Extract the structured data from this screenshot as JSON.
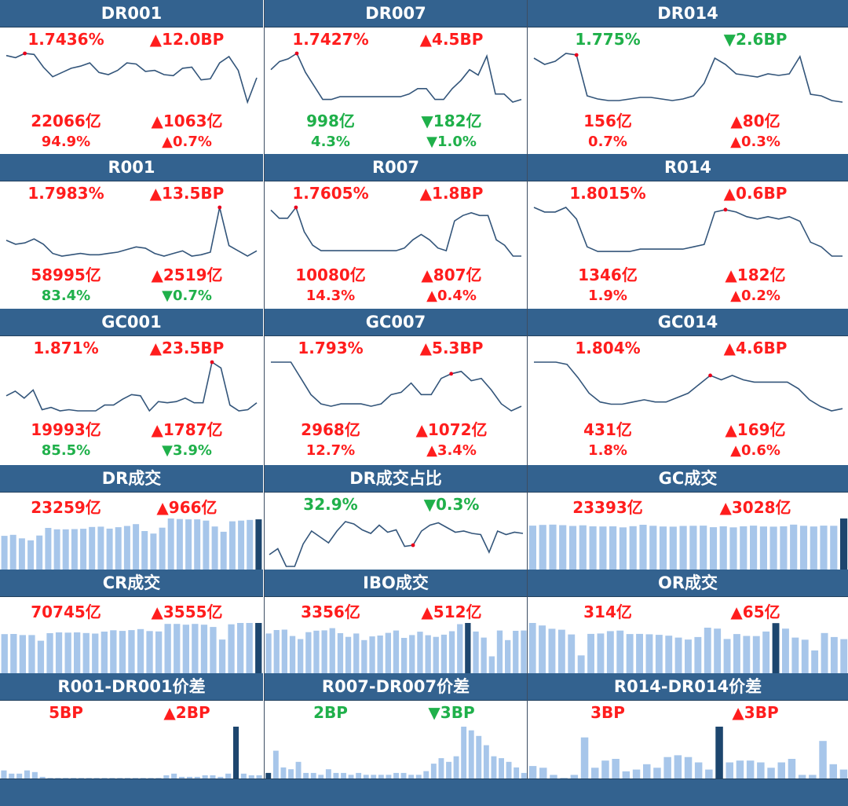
{
  "colors": {
    "up": "#ff1d1d",
    "down": "#1fb04a",
    "header_bg": "#33628f",
    "line": "#33557a",
    "bar_light": "#a7c6ea",
    "bar_dark": "#1d466e",
    "point": "#e8001c"
  },
  "rows": [
    {
      "kind": "rate",
      "panels": [
        {
          "title": "DR001",
          "rate": "1.7436%",
          "rate_dir": "up",
          "rate_chg": "▲12.0BP",
          "rate_chg_dir": "up",
          "vol": "22066亿",
          "vol_dir": "up",
          "vol_chg": "▲1063亿",
          "vol_chg_dir": "up",
          "share": "94.9%",
          "share_dir": "up",
          "share_chg": "▲0.7%",
          "share_chg_dir": "up",
          "chart_data": {
            "type": "line",
            "values": [
              1.58,
              1.56,
              1.6,
              1.59,
              1.47,
              1.38,
              1.42,
              1.46,
              1.48,
              1.51,
              1.42,
              1.4,
              1.44,
              1.51,
              1.5,
              1.43,
              1.44,
              1.4,
              1.39,
              1.46,
              1.47,
              1.35,
              1.36,
              1.51,
              1.57,
              1.44,
              1.14,
              1.37
            ],
            "highlight": 2
          }
        },
        {
          "title": "DR007",
          "rate": "1.7427%",
          "rate_dir": "up",
          "rate_chg": "▲4.5BP",
          "rate_chg_dir": "up",
          "vol": "998亿",
          "vol_dir": "down",
          "vol_chg": "▼182亿",
          "vol_chg_dir": "down",
          "share": "4.3%",
          "share_dir": "down",
          "share_chg": "▼1.0%",
          "share_chg_dir": "down",
          "chart_data": {
            "type": "line",
            "values": [
              1.8,
              1.83,
              1.84,
              1.86,
              1.79,
              1.74,
              1.69,
              1.69,
              1.7,
              1.7,
              1.7,
              1.7,
              1.7,
              1.7,
              1.7,
              1.7,
              1.71,
              1.73,
              1.73,
              1.69,
              1.69,
              1.73,
              1.76,
              1.8,
              1.78,
              1.85,
              1.71,
              1.71,
              1.68,
              1.69
            ],
            "highlight": 3
          }
        },
        {
          "title": "DR014",
          "rate": "1.775%",
          "rate_dir": "down",
          "rate_chg": "▼2.6BP",
          "rate_chg_dir": "down",
          "vol": "156亿",
          "vol_dir": "up",
          "vol_chg": "▲80亿",
          "vol_chg_dir": "up",
          "share": "0.7%",
          "share_dir": "up",
          "share_chg": "▲0.3%",
          "share_chg_dir": "up",
          "chart_data": {
            "type": "line",
            "values": [
              1.86,
              1.82,
              1.84,
              1.89,
              1.88,
              1.62,
              1.6,
              1.59,
              1.59,
              1.6,
              1.61,
              1.61,
              1.6,
              1.59,
              1.6,
              1.62,
              1.7,
              1.86,
              1.82,
              1.76,
              1.75,
              1.74,
              1.76,
              1.75,
              1.76,
              1.87,
              1.63,
              1.62,
              1.59,
              1.58
            ],
            "highlight": 4
          }
        }
      ]
    },
    {
      "kind": "rate",
      "panels": [
        {
          "title": "R001",
          "rate": "1.7983%",
          "rate_dir": "up",
          "rate_chg": "▲13.5BP",
          "rate_chg_dir": "up",
          "vol": "58995亿",
          "vol_dir": "up",
          "vol_chg": "▲2519亿",
          "vol_chg_dir": "up",
          "share": "83.4%",
          "share_dir": "down",
          "share_chg": "▼0.7%",
          "share_chg_dir": "down",
          "chart_data": {
            "type": "line",
            "values": [
              1.55,
              1.52,
              1.53,
              1.56,
              1.52,
              1.45,
              1.43,
              1.44,
              1.45,
              1.44,
              1.44,
              1.45,
              1.46,
              1.48,
              1.5,
              1.49,
              1.45,
              1.43,
              1.45,
              1.47,
              1.43,
              1.44,
              1.46,
              1.8,
              1.51,
              1.47,
              1.43,
              1.47
            ],
            "highlight": 23
          }
        },
        {
          "title": "R007",
          "rate": "1.7605%",
          "rate_dir": "up",
          "rate_chg": "▲1.8BP",
          "rate_chg_dir": "up",
          "vol": "10080亿",
          "vol_dir": "up",
          "vol_chg": "▲807亿",
          "vol_chg_dir": "up",
          "share": "14.3%",
          "share_dir": "up",
          "share_chg": "▲0.4%",
          "share_chg_dir": "up",
          "chart_data": {
            "type": "line",
            "values": [
              1.82,
              1.79,
              1.79,
              1.83,
              1.74,
              1.69,
              1.67,
              1.67,
              1.67,
              1.67,
              1.67,
              1.67,
              1.67,
              1.67,
              1.67,
              1.67,
              1.68,
              1.71,
              1.73,
              1.71,
              1.68,
              1.67,
              1.78,
              1.8,
              1.81,
              1.8,
              1.8,
              1.71,
              1.69,
              1.65,
              1.65
            ],
            "highlight": 3
          }
        },
        {
          "title": "R014",
          "rate": "1.8015%",
          "rate_dir": "up",
          "rate_chg": "▲0.6BP",
          "rate_chg_dir": "up",
          "vol": "1346亿",
          "vol_dir": "up",
          "vol_chg": "▲182亿",
          "vol_chg_dir": "up",
          "share": "1.9%",
          "share_dir": "up",
          "share_chg": "▲0.2%",
          "share_chg_dir": "up",
          "chart_data": {
            "type": "line",
            "values": [
              1.87,
              1.85,
              1.85,
              1.87,
              1.82,
              1.7,
              1.68,
              1.68,
              1.68,
              1.68,
              1.69,
              1.69,
              1.69,
              1.69,
              1.69,
              1.7,
              1.71,
              1.85,
              1.86,
              1.85,
              1.83,
              1.82,
              1.83,
              1.82,
              1.83,
              1.81,
              1.72,
              1.7,
              1.66,
              1.66
            ],
            "highlight": 18
          }
        }
      ]
    },
    {
      "kind": "rate",
      "panels": [
        {
          "title": "GC001",
          "rate": "1.871%",
          "rate_dir": "up",
          "rate_chg": "▲23.5BP",
          "rate_chg_dir": "up",
          "vol": "19993亿",
          "vol_dir": "up",
          "vol_chg": "▲1787亿",
          "vol_chg_dir": "up",
          "share": "85.5%",
          "share_dir": "down",
          "share_chg": "▼3.9%",
          "share_chg_dir": "down",
          "chart_data": {
            "type": "line",
            "values": [
              1.58,
              1.62,
              1.56,
              1.63,
              1.46,
              1.48,
              1.45,
              1.46,
              1.45,
              1.45,
              1.45,
              1.5,
              1.5,
              1.55,
              1.59,
              1.58,
              1.45,
              1.53,
              1.52,
              1.53,
              1.56,
              1.52,
              1.52,
              1.87,
              1.82,
              1.5,
              1.45,
              1.46,
              1.52
            ],
            "highlight": 23
          }
        },
        {
          "title": "GC007",
          "rate": "1.793%",
          "rate_dir": "up",
          "rate_chg": "▲5.3BP",
          "rate_chg_dir": "up",
          "vol": "2968亿",
          "vol_dir": "up",
          "vol_chg": "▲1072亿",
          "vol_chg_dir": "up",
          "share": "12.7%",
          "share_dir": "up",
          "share_chg": "▲3.4%",
          "share_chg_dir": "up",
          "chart_data": {
            "type": "line",
            "values": [
              1.84,
              1.84,
              1.84,
              1.77,
              1.7,
              1.66,
              1.65,
              1.66,
              1.66,
              1.66,
              1.65,
              1.66,
              1.7,
              1.71,
              1.75,
              1.7,
              1.7,
              1.77,
              1.79,
              1.8,
              1.76,
              1.77,
              1.72,
              1.66,
              1.63,
              1.65
            ],
            "highlight": 18
          }
        },
        {
          "title": "GC014",
          "rate": "1.804%",
          "rate_dir": "up",
          "rate_chg": "▲4.6BP",
          "rate_chg_dir": "up",
          "vol": "431亿",
          "vol_dir": "up",
          "vol_chg": "▲169亿",
          "vol_chg_dir": "up",
          "share": "1.8%",
          "share_dir": "up",
          "share_chg": "▲0.6%",
          "share_chg_dir": "up",
          "chart_data": {
            "type": "line",
            "values": [
              1.86,
              1.86,
              1.86,
              1.85,
              1.79,
              1.72,
              1.68,
              1.67,
              1.67,
              1.68,
              1.69,
              1.68,
              1.68,
              1.7,
              1.72,
              1.76,
              1.8,
              1.78,
              1.8,
              1.78,
              1.77,
              1.77,
              1.77,
              1.77,
              1.74,
              1.69,
              1.66,
              1.64,
              1.65
            ],
            "highlight": 16
          }
        }
      ]
    },
    {
      "kind": "vol",
      "panels": [
        {
          "title": "DR成交",
          "v1": "23259亿",
          "v1_dir": "up",
          "v2": "▲966亿",
          "v2_dir": "up",
          "chart_data": {
            "type": "bar",
            "values": [
              19000,
              19600,
              17600,
              16500,
              19200,
              23500,
              22700,
              22700,
              22800,
              23000,
              24000,
              24200,
              23100,
              23900,
              24600,
              25600,
              21700,
              20300,
              23600,
              28800,
              28500,
              28300,
              28300,
              27600,
              24300,
              21300,
              27200,
              27600,
              28000,
              28300
            ],
            "highlight_last": true
          }
        },
        {
          "title": "DR成交占比",
          "v1": "32.9%",
          "v1_dir": "down",
          "v2": "▼0.3%",
          "v2_dir": "down",
          "chart_data": {
            "type": "line",
            "values": [
              31.0,
              31.5,
              30.0,
              30.0,
              31.9,
              33.0,
              32.5,
              32.0,
              33.0,
              33.8,
              33.6,
              33.1,
              32.8,
              33.5,
              32.9,
              33.1,
              31.7,
              31.8,
              33.0,
              33.5,
              33.7,
              33.3,
              32.9,
              33.0,
              32.8,
              32.7,
              31.2,
              33.0,
              32.7,
              32.9,
              32.8
            ],
            "highlight": 17
          }
        },
        {
          "title": "GC成交",
          "v1": "23393亿",
          "v1_dir": "up",
          "v2": "▲3028亿",
          "v2_dir": "up",
          "chart_data": {
            "type": "bar",
            "values": [
              25800,
              26200,
              26400,
              26100,
              25600,
              26000,
              25400,
              25300,
              25400,
              24800,
              25500,
              26300,
              25700,
              25300,
              25200,
              25600,
              25700,
              25800,
              24900,
              25400,
              24800,
              25400,
              25800,
              25300,
              25200,
              25400,
              26400,
              25700,
              25300,
              25800,
              25700,
              30000
            ],
            "highlight_last": true
          }
        }
      ]
    },
    {
      "kind": "vol",
      "panels": [
        {
          "title": "CR成交",
          "v1": "70745亿",
          "v1_dir": "up",
          "v2": "▲3555亿",
          "v2_dir": "up",
          "chart_data": {
            "type": "bar",
            "values": [
              20300,
              20400,
              19800,
              19800,
              16900,
              20800,
              21200,
              21100,
              21200,
              20900,
              20600,
              21600,
              22300,
              22000,
              22400,
              22900,
              21900,
              21700,
              25600,
              25600,
              25200,
              25600,
              25200,
              24000,
              17500,
              25400,
              26100,
              26100,
              26100
            ],
            "highlight_last": true
          }
        },
        {
          "title": "IBO成交",
          "v1": "3356亿",
          "v1_dir": "up",
          "v2": "▲512亿",
          "v2_dir": "up",
          "chart_data": {
            "type": "bar",
            "values": [
              23700,
              25800,
              26000,
              22200,
              20400,
              24500,
              25400,
              25600,
              26900,
              23900,
              21700,
              23700,
              19800,
              22000,
              22500,
              24100,
              25500,
              21100,
              22800,
              24800,
              22700,
              21700,
              23000,
              25100,
              29300,
              30000,
              24900,
              21300,
              10100,
              25500,
              19800,
              25300,
              25500
            ],
            "highlight_index": 25
          }
        },
        {
          "title": "OR成交",
          "v1": "314亿",
          "v1_dir": "up",
          "v2": "▲65亿",
          "v2_dir": "up",
          "chart_data": {
            "type": "bar",
            "values": [
              27600,
              26200,
              24400,
              23900,
              21300,
              9800,
              21600,
              21800,
              23100,
              23400,
              21500,
              21600,
              21400,
              21100,
              20600,
              19600,
              18500,
              19900,
              25000,
              24500,
              18800,
              21500,
              20500,
              20400,
              22900,
              27500,
              24500,
              19600,
              18400,
              12500,
              22100,
              19900,
              18700
            ],
            "highlight_index": 25
          }
        }
      ]
    },
    {
      "kind": "spread",
      "panels": [
        {
          "title": "R001-DR001价差",
          "v1": "5BP",
          "v1_dir": "up",
          "v2": "▲2BP",
          "v2_dir": "up",
          "chart_data": {
            "type": "bar",
            "values": [
              5,
              3,
              3,
              5,
              4,
              1,
              0,
              0,
              0,
              0,
              0,
              0,
              0,
              0,
              0,
              0,
              0,
              0,
              0,
              0,
              0,
              2,
              3,
              1,
              1,
              1,
              2,
              2,
              1,
              3,
              32,
              3,
              2,
              2
            ],
            "highlight_index": 30
          }
        },
        {
          "title": "R007-DR007价差",
          "v1": "2BP",
          "v1_dir": "down",
          "v2": "▼3BP",
          "v2_dir": "down",
          "chart_data": {
            "type": "bar",
            "values": [
              3,
              15,
              6,
              5,
              9,
              3,
              3,
              2,
              5,
              3,
              3,
              2,
              3,
              2,
              2,
              2,
              2,
              3,
              3,
              2,
              2,
              4,
              8,
              11,
              9,
              12,
              28,
              26,
              23,
              18,
              12,
              11,
              9,
              6,
              3
            ],
            "highlight_index": 0
          }
        },
        {
          "title": "R014-DR014价差",
          "v1": "3BP",
          "v1_dir": "up",
          "v2": "▲3BP",
          "v2_dir": "up",
          "chart_data": {
            "type": "bar",
            "values": [
              7,
              6,
              2,
              0,
              2,
              23,
              6,
              10,
              11,
              4,
              5,
              8,
              6,
              12,
              13,
              12,
              9,
              5,
              29,
              9,
              10,
              10,
              9,
              6,
              9,
              11,
              2,
              2,
              21,
              8,
              5
            ],
            "highlight_index": 18
          }
        }
      ]
    }
  ]
}
